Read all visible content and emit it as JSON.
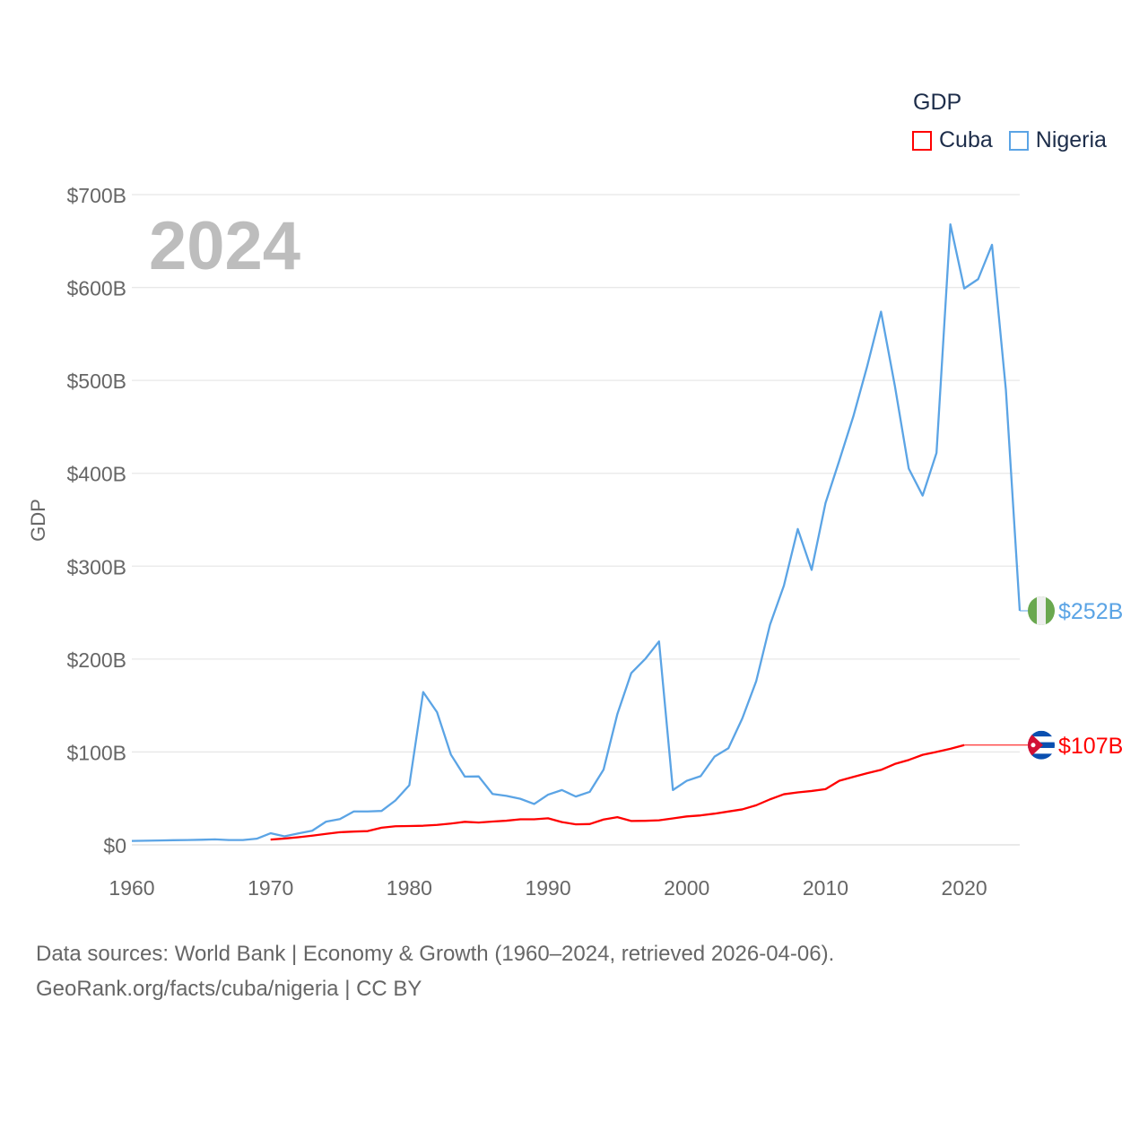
{
  "chart_data": {
    "type": "line",
    "title": "GDP",
    "year_watermark": "2024",
    "xlabel": "",
    "ylabel": "GDP",
    "xlim": [
      1960,
      2024
    ],
    "ylim": [
      0,
      700
    ],
    "x_ticks": [
      "1960",
      "1970",
      "1980",
      "1990",
      "2000",
      "2010",
      "2020"
    ],
    "y_ticks": [
      "$0",
      "$100B",
      "$200B",
      "$300B",
      "$400B",
      "$500B",
      "$600B",
      "$700B"
    ],
    "grid": true,
    "legend_position": "top-right",
    "units": "billions USD",
    "series": [
      {
        "name": "Cuba",
        "color": "#ff0000",
        "end_label": "$107B",
        "flag": "cuba-flag",
        "start_year": 1970,
        "values": [
          5.7,
          6.8,
          8.2,
          9.9,
          11.8,
          13.6,
          14.3,
          14.8,
          18.5,
          20,
          20.3,
          20.6,
          21.5,
          22.9,
          24.8,
          24,
          25.1,
          26,
          27.5,
          27.5,
          28.6,
          24.5,
          22.1,
          22.4,
          27.3,
          29.8,
          25.7,
          25.9,
          26.4,
          28.5,
          30.6,
          31.7,
          33.6,
          35.9,
          38.2,
          42.6,
          49,
          54.5,
          56.5,
          58,
          60,
          69,
          73.1,
          77.1,
          80.7,
          87.1,
          91.4,
          96.9,
          100,
          103.4,
          107.4
        ]
      },
      {
        "name": "Nigeria",
        "color": "#5ba4e5",
        "end_label": "$252B",
        "flag": "nigeria-flag",
        "start_year": 1960,
        "values": [
          4.2,
          4.5,
          4.7,
          5,
          5.2,
          5.5,
          5.9,
          5.2,
          5.2,
          6.6,
          12.5,
          9.2,
          12.3,
          15.2,
          25,
          27.8,
          36,
          36,
          36.5,
          47.8,
          64.2,
          164.5,
          142.8,
          97.1,
          73.5,
          73.7,
          54.8,
          52.7,
          49.6,
          44,
          54,
          59,
          52,
          57,
          81,
          141,
          185,
          200,
          219,
          59,
          69,
          74,
          95,
          104,
          136,
          176,
          237,
          279,
          340,
          296,
          368,
          414,
          461,
          515,
          574,
          494,
          405,
          376,
          422,
          668,
          599,
          609,
          646,
          490,
          252
        ]
      }
    ]
  },
  "footer": {
    "line1": "Data sources: World Bank | Economy & Growth (1960–2024, retrieved 2026-04-06).",
    "line2": "GeoRank.org/facts/cuba/nigeria | CC BY"
  }
}
